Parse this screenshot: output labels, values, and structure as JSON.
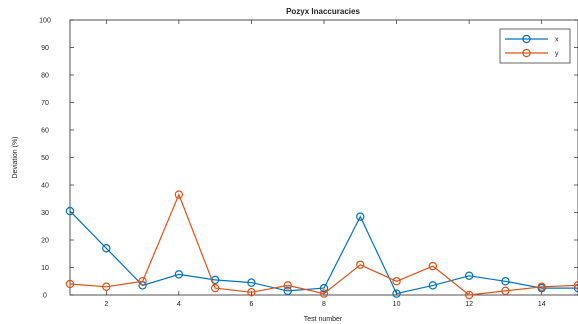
{
  "chart_data": {
    "type": "line",
    "title": "Pozyx Inaccuracies",
    "xlabel": "Test number",
    "ylabel": "Deviation (%)",
    "xlim": [
      1,
      15
    ],
    "ylim": [
      0,
      100
    ],
    "xticks": [
      2,
      4,
      6,
      8,
      10,
      12,
      14
    ],
    "yticks": [
      0,
      10,
      20,
      30,
      40,
      50,
      60,
      70,
      80,
      90,
      100
    ],
    "legend_position": "top-right",
    "grid": false,
    "x": [
      1,
      2,
      3,
      4,
      5,
      6,
      7,
      8,
      9,
      10,
      11,
      12,
      13,
      14,
      15
    ],
    "series": [
      {
        "name": "x",
        "color": "#0072BD",
        "marker": "circle",
        "values": [
          30.5,
          17,
          3.5,
          7.5,
          5.5,
          4.5,
          1.5,
          2.5,
          28.5,
          0.5,
          3.5,
          7,
          5,
          2.5,
          2.5
        ]
      },
      {
        "name": "y",
        "color": "#D95319",
        "marker": "circle",
        "values": [
          4,
          3,
          5,
          36.5,
          2.5,
          1,
          3.5,
          0.5,
          11,
          5,
          10.5,
          0,
          1.5,
          3,
          3.5
        ]
      }
    ]
  }
}
